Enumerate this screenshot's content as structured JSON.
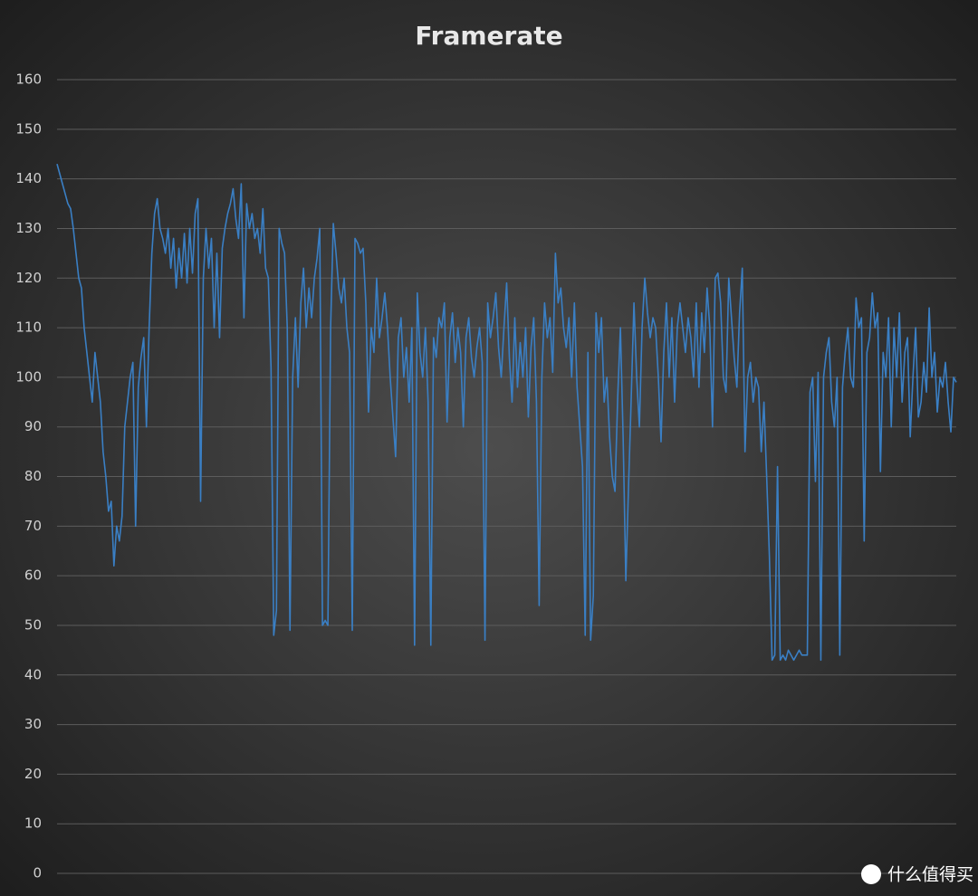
{
  "chart_data": {
    "type": "line",
    "title": "Framerate",
    "ylim": [
      0,
      160
    ],
    "yticks": [
      0,
      10,
      20,
      30,
      40,
      50,
      60,
      70,
      80,
      90,
      100,
      110,
      120,
      130,
      140,
      150,
      160
    ],
    "grid": true,
    "series": [
      {
        "name": "Framerate",
        "color": "#3a7fc4",
        "values": [
          143,
          141,
          139,
          137,
          135,
          134,
          130,
          125,
          120,
          118,
          110,
          105,
          100,
          95,
          105,
          100,
          95,
          85,
          80,
          73,
          75,
          62,
          70,
          67,
          72,
          90,
          95,
          100,
          103,
          70,
          98,
          104,
          108,
          90,
          110,
          125,
          133,
          136,
          130,
          128,
          125,
          130,
          122,
          128,
          118,
          126,
          120,
          129,
          119,
          130,
          121,
          133,
          136,
          75,
          120,
          130,
          122,
          128,
          110,
          125,
          108,
          126,
          130,
          133,
          135,
          138,
          132,
          128,
          139,
          112,
          135,
          130,
          133,
          128,
          130,
          125,
          134,
          122,
          120,
          102,
          48,
          53,
          130,
          127,
          125,
          110,
          49,
          100,
          112,
          98,
          115,
          122,
          110,
          118,
          112,
          120,
          124,
          130,
          50,
          51,
          50,
          110,
          131,
          125,
          118,
          115,
          120,
          110,
          105,
          49,
          128,
          127,
          125,
          126,
          115,
          93,
          110,
          105,
          120,
          108,
          112,
          117,
          110,
          100,
          92,
          84,
          108,
          112,
          100,
          106,
          95,
          110,
          46,
          117,
          105,
          100,
          110,
          95,
          46,
          108,
          104,
          112,
          110,
          115,
          91,
          108,
          113,
          103,
          110,
          105,
          90,
          108,
          112,
          104,
          100,
          106,
          110,
          103,
          47,
          115,
          108,
          112,
          117,
          106,
          100,
          110,
          119,
          104,
          95,
          112,
          98,
          107,
          100,
          110,
          92,
          106,
          112,
          95,
          54,
          100,
          115,
          108,
          112,
          101,
          125,
          115,
          118,
          110,
          106,
          112,
          100,
          115,
          98,
          90,
          82,
          48,
          105,
          47,
          56,
          113,
          105,
          112,
          95,
          100,
          88,
          80,
          77,
          96,
          110,
          88,
          59,
          78,
          96,
          115,
          100,
          90,
          110,
          120,
          113,
          108,
          112,
          110,
          100,
          87,
          105,
          115,
          100,
          112,
          95,
          110,
          115,
          110,
          105,
          112,
          108,
          100,
          115,
          98,
          113,
          105,
          118,
          110,
          90,
          120,
          121,
          115,
          100,
          97,
          120,
          112,
          104,
          98,
          113,
          122,
          85,
          100,
          103,
          95,
          100,
          98,
          85,
          95,
          80,
          64,
          43,
          44,
          82,
          43,
          44,
          43,
          45,
          44,
          43,
          44,
          45,
          44,
          44,
          44,
          97,
          100,
          79,
          101,
          43,
          100,
          105,
          108,
          95,
          90,
          100,
          44,
          98,
          105,
          110,
          100,
          98,
          116,
          110,
          112,
          67,
          105,
          108,
          117,
          110,
          113,
          81,
          105,
          100,
          112,
          90,
          110,
          100,
          113,
          95,
          105,
          108,
          88,
          100,
          110,
          92,
          95,
          103,
          97,
          114,
          100,
          105,
          93,
          100,
          98,
          103,
          95,
          89,
          100,
          99
        ]
      }
    ]
  },
  "watermark": "什么值得买"
}
